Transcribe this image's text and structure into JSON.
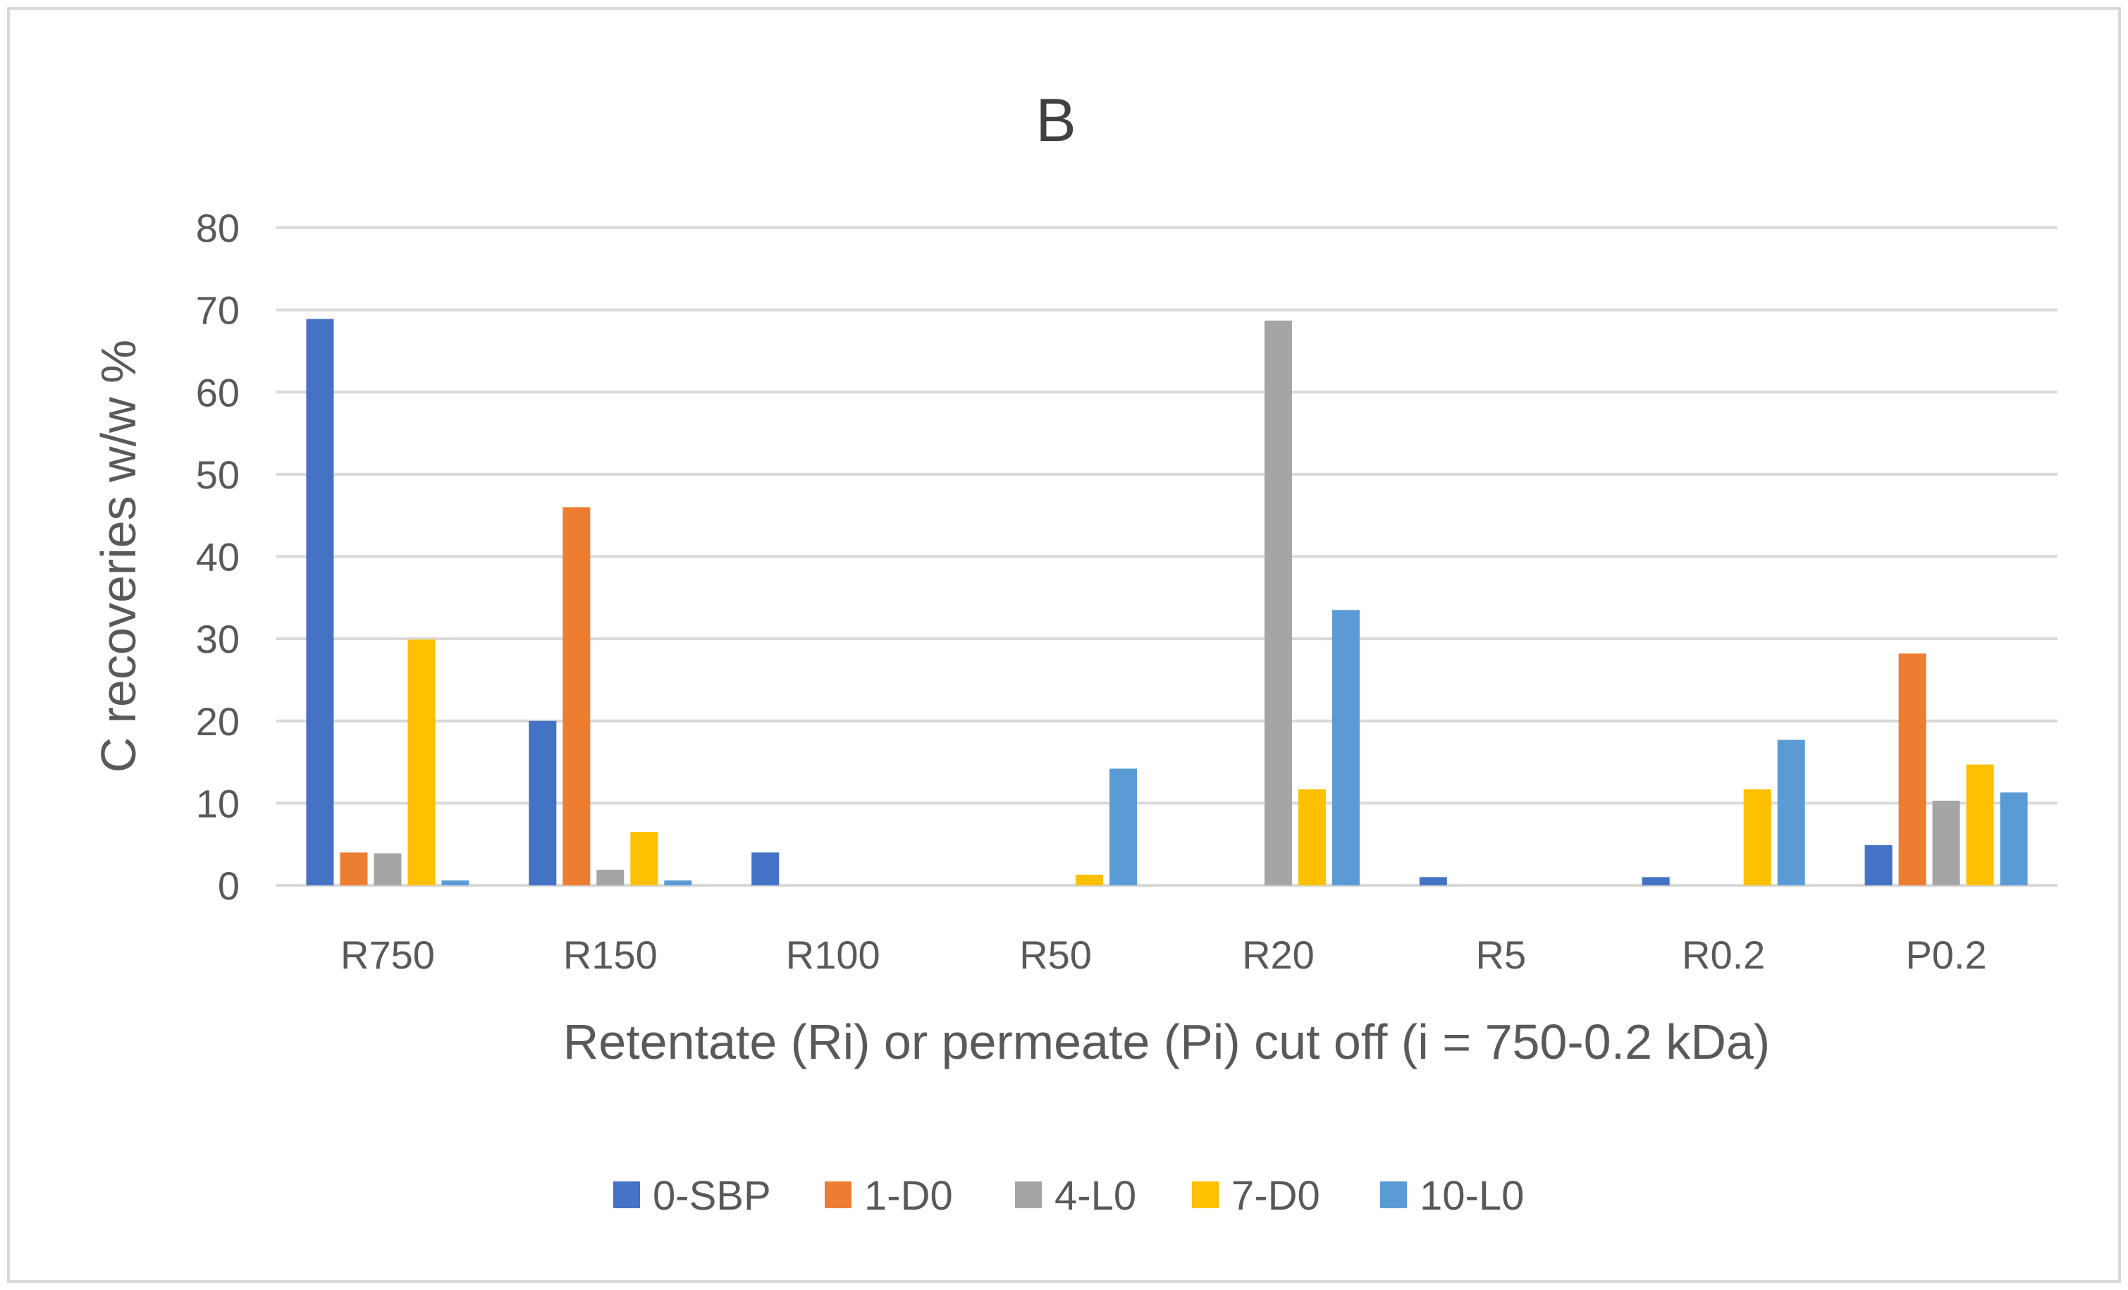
{
  "chart_data": {
    "type": "bar",
    "title": "B",
    "xlabel": "Retentate (Ri) or permeate (Pi) cut off (i = 750-0.2 kDa)",
    "ylabel": "C recoveries w/w %",
    "ylim": [
      0,
      80
    ],
    "yticks": [
      0,
      10,
      20,
      30,
      40,
      50,
      60,
      70,
      80
    ],
    "grid": true,
    "legend_position": "bottom",
    "categories": [
      "R750",
      "R150",
      "R100",
      "R50",
      "R20",
      "R5",
      "R0.2",
      "P0.2"
    ],
    "series": [
      {
        "name": "0-SBP",
        "color": "#4472C4",
        "values": [
          68.9,
          20.0,
          4.0,
          0,
          0,
          1.0,
          1.0,
          4.9
        ]
      },
      {
        "name": "1-D0",
        "color": "#ED7D31",
        "values": [
          4.0,
          46.0,
          0,
          0,
          0,
          0,
          0,
          28.2
        ]
      },
      {
        "name": "4-L0",
        "color": "#A5A5A5",
        "values": [
          3.9,
          1.9,
          0,
          0,
          68.7,
          0,
          0,
          10.3
        ]
      },
      {
        "name": "7-D0",
        "color": "#FFC000",
        "values": [
          29.9,
          6.5,
          0,
          1.3,
          11.7,
          0,
          11.7,
          14.7
        ]
      },
      {
        "name": "10-L0",
        "color": "#5B9BD5",
        "values": [
          0.6,
          0.6,
          0,
          14.2,
          33.5,
          0,
          17.7,
          11.3
        ]
      }
    ]
  }
}
